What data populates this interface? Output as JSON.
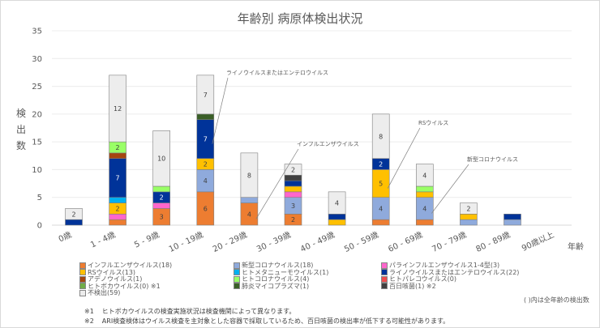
{
  "chart_data": {
    "type": "bar",
    "stacked": true,
    "title": "年齢別 病原体検出状況",
    "xlabel": "年齢",
    "ylabel": "検出数",
    "ylim": [
      0,
      35
    ],
    "yticks": [
      0,
      5,
      10,
      15,
      20,
      25,
      30,
      35
    ],
    "grid": true,
    "categories": [
      "0歳",
      "1 - 4歳",
      "5 - 9歳",
      "10 - 19歳",
      "20 - 29歳",
      "30 - 39歳",
      "40 - 49歳",
      "50 - 59歳",
      "60 - 69歳",
      "70 - 79歳",
      "80 - 89歳",
      "90歳以上"
    ],
    "series": [
      {
        "name": "インフルエンザウイルス",
        "total": 18,
        "color": "#ED7D31",
        "values": [
          0,
          1,
          3,
          6,
          4,
          2,
          0,
          1,
          1,
          0,
          0,
          0
        ]
      },
      {
        "name": "新型コロナウイルス",
        "total": 18,
        "color": "#8FAADC",
        "values": [
          0,
          0,
          0,
          4,
          1,
          3,
          0,
          4,
          4,
          1,
          1,
          0
        ]
      },
      {
        "name": "パラインフルエンザウイルス1-4型",
        "total": 3,
        "color": "#FF66CC",
        "values": [
          0,
          1,
          1,
          0,
          0,
          1,
          0,
          0,
          0,
          0,
          0,
          0
        ]
      },
      {
        "name": "RSウイルス",
        "total": 13,
        "color": "#FFC000",
        "values": [
          0,
          2,
          0,
          2,
          0,
          1,
          1,
          5,
          1,
          1,
          0,
          0
        ]
      },
      {
        "name": "ヒトメタニューモウイルス",
        "total": 1,
        "color": "#00B0F0",
        "values": [
          0,
          1,
          0,
          0,
          0,
          0,
          0,
          0,
          0,
          0,
          0,
          0
        ]
      },
      {
        "name": "ライノウイルスまたはエンテロウイルス",
        "total": 22,
        "color": "#003399",
        "values": [
          1,
          7,
          2,
          7,
          0,
          1,
          1,
          2,
          0,
          0,
          1,
          0
        ]
      },
      {
        "name": "アデノウイルス",
        "total": 1,
        "color": "#A5460F",
        "values": [
          0,
          1,
          0,
          0,
          0,
          0,
          0,
          0,
          0,
          0,
          0,
          0
        ]
      },
      {
        "name": "ヒトパレコウイルス",
        "total": 0,
        "color": "#F04E4E",
        "values": [
          0,
          0,
          0,
          0,
          0,
          0,
          0,
          0,
          0,
          0,
          0,
          0
        ]
      },
      {
        "name": "ヒトコロナウイルス",
        "total": 4,
        "color": "#99FF66",
        "values": [
          0,
          2,
          1,
          0,
          0,
          0,
          0,
          0,
          1,
          0,
          0,
          0
        ]
      },
      {
        "name": "ヒトボカウイルス",
        "total": 0,
        "color": "#70AD47",
        "values": [
          0,
          0,
          0,
          0,
          0,
          0,
          0,
          0,
          0,
          0,
          0,
          0
        ],
        "note": "※1"
      },
      {
        "name": "肺炎マイコプラズマ",
        "total": 1,
        "color": "#3A5F27",
        "values": [
          0,
          0,
          0,
          1,
          0,
          0,
          0,
          0,
          0,
          0,
          0,
          0
        ]
      },
      {
        "name": "百日咳菌",
        "total": 1,
        "color": "#404040",
        "values": [
          0,
          0,
          0,
          0,
          0,
          1,
          0,
          0,
          0,
          0,
          0,
          0
        ],
        "note": "※2"
      },
      {
        "name": "不検出",
        "total": 59,
        "color": "#EDEDED",
        "values": [
          2,
          12,
          10,
          7,
          8,
          2,
          4,
          8,
          4,
          2,
          0,
          0
        ]
      }
    ],
    "annotations": [
      {
        "text": "ライノウイルスまたはエンテロウイルス",
        "category": "10 - 19歳",
        "series": "ライノウイルスまたはエンテロウイルス"
      },
      {
        "text": "インフルエンザウイルス",
        "category": "20 - 29歳",
        "series": "インフルエンザウイルス"
      },
      {
        "text": "RSウイルス",
        "category": "50 - 59歳",
        "series": "RSウイルス"
      },
      {
        "text": "新型コロナウイルス",
        "category": "60 - 69歳",
        "series": "新型コロナウイルス"
      }
    ],
    "legend_position": "bottom"
  },
  "legend_note": "( )内は全年齢の検出数",
  "footnotes": [
    {
      "mark": "※1",
      "text": "ヒトボカウイルスの検査実施状況は検査機関によって異なります。"
    },
    {
      "mark": "※2",
      "text": "ARI検査検体はウイルス検査を主対象とした容器で採取しているため、百日咳菌の検出率が低下する可能性があります。"
    }
  ]
}
